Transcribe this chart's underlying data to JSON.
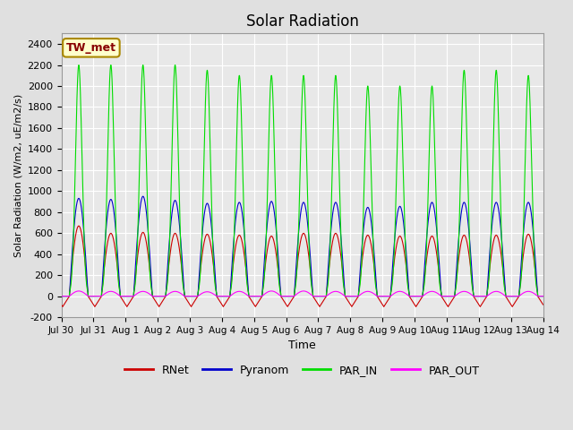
{
  "title": "Solar Radiation",
  "ylabel": "Solar Radiation (W/m2, uE/m2/s)",
  "xlabel": "Time",
  "ylim": [
    -200,
    2500
  ],
  "yticks": [
    -200,
    0,
    200,
    400,
    600,
    800,
    1000,
    1200,
    1400,
    1600,
    1800,
    2000,
    2200,
    2400
  ],
  "fig_bg_color": "#e0e0e0",
  "plot_bg_color": "#e8e8e8",
  "colors": {
    "RNet": "#cc0000",
    "Pyranom": "#0000cc",
    "PAR_IN": "#00dd00",
    "PAR_OUT": "#ff00ff"
  },
  "station_label": "TW_met",
  "station_label_bg": "#ffffcc",
  "station_label_border": "#aa8800",
  "xtick_labels": [
    "Jul 30",
    "Jul 31",
    "Aug 1",
    "Aug 2",
    "Aug 3",
    "Aug 4",
    "Aug 5",
    "Aug 6",
    "Aug 7",
    "Aug 8",
    "Aug 9",
    "Aug 10",
    "Aug 11",
    "Aug 12",
    "Aug 13",
    "Aug 14"
  ],
  "PAR_IN_peaks": [
    2200,
    2200,
    2200,
    2200,
    2150,
    2100,
    2100,
    2100,
    2100,
    2000,
    2000,
    2000,
    2150,
    2150,
    2100
  ],
  "Pyranom_peaks": [
    980,
    970,
    1000,
    960,
    930,
    940,
    950,
    940,
    940,
    890,
    900,
    940,
    940,
    940,
    940
  ],
  "RNet_peaks": [
    760,
    680,
    690,
    680,
    670,
    660,
    650,
    680,
    680,
    660,
    650,
    650,
    660,
    660,
    670
  ],
  "PAR_OUT_peaks": [
    70,
    65,
    65,
    65,
    60,
    65,
    70,
    70,
    65,
    65,
    65,
    65,
    65,
    65,
    65
  ],
  "RNet_night": -100,
  "num_days": 15
}
